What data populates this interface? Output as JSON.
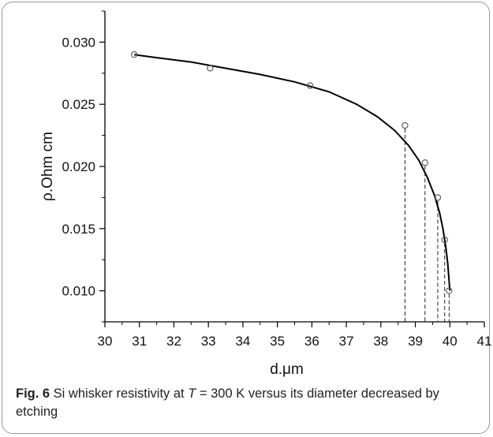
{
  "chart_data": {
    "type": "scatter",
    "xlabel": "d.μm",
    "ylabel": "ρ.Ohm cm",
    "xlim": [
      30,
      41
    ],
    "ylim": [
      0.0075,
      0.0325
    ],
    "x_ticks": [
      30,
      31,
      32,
      33,
      34,
      35,
      36,
      37,
      38,
      39,
      40,
      41
    ],
    "x_tick_labels": [
      "30",
      "31",
      "32",
      "33",
      "34",
      "35",
      "36",
      "37",
      "38",
      "39",
      "40",
      "41"
    ],
    "y_ticks": [
      0.01,
      0.015,
      0.02,
      0.025,
      0.03
    ],
    "y_tick_labels": [
      "0.010",
      "0.015",
      "0.020",
      "0.025",
      "0.030"
    ],
    "grid": false,
    "series": [
      {
        "marker": "open-circle",
        "x": [
          30.85,
          33.05,
          35.95,
          38.7,
          39.28,
          39.65,
          39.85,
          39.98
        ],
        "y": [
          0.029,
          0.0279,
          0.0265,
          0.0233,
          0.0203,
          0.0175,
          0.0141,
          0.01
        ]
      }
    ],
    "fit_curve": {
      "x": [
        30.85,
        31.5,
        32.5,
        33.5,
        34.5,
        35.5,
        36.5,
        37.3,
        37.9,
        38.4,
        38.8,
        39.1,
        39.35,
        39.55,
        39.7,
        39.8,
        39.88,
        39.94,
        40.0
      ],
      "y": [
        0.029,
        0.02875,
        0.0284,
        0.0279,
        0.0274,
        0.0268,
        0.026,
        0.025,
        0.024,
        0.0229,
        0.0217,
        0.0205,
        0.0191,
        0.0177,
        0.0163,
        0.015,
        0.0136,
        0.0122,
        0.01
      ]
    },
    "drop_lines_x": [
      38.7,
      39.28,
      39.65,
      39.85,
      39.98
    ]
  },
  "caption": {
    "lead": "Fig. 6",
    "text_before": " Si whisker resistivity at ",
    "var": "T",
    "text_after": " = 300 K versus its diameter decreased by etching"
  },
  "colors": {
    "axis": "#000000",
    "curve": "#000000",
    "marker": "#555555"
  }
}
